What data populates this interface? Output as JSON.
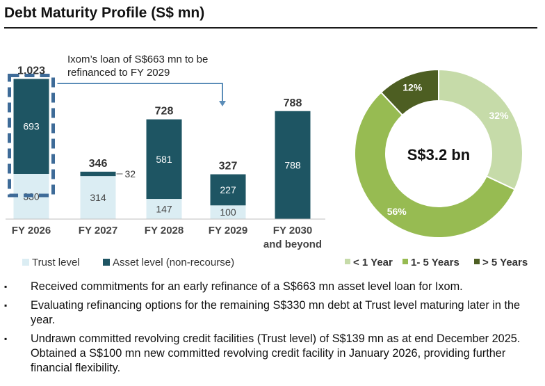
{
  "title": "Debt Maturity Profile (S$ mn)",
  "chart_data": [
    {
      "type": "bar",
      "stacked": true,
      "categories": [
        [
          "FY 2026"
        ],
        [
          "FY 2027"
        ],
        [
          "FY 2028"
        ],
        [
          "FY 2029"
        ],
        [
          "FY 2030",
          "and beyond"
        ]
      ],
      "series": [
        {
          "name": "Trust level",
          "color": "#dbedf3",
          "values": [
            330,
            314,
            147,
            100,
            0
          ]
        },
        {
          "name": "Asset level (non-recourse)",
          "color": "#1e5563",
          "values": [
            693,
            32,
            581,
            227,
            788
          ]
        }
      ],
      "totals": [
        1023,
        346,
        728,
        327,
        788
      ],
      "value_labels": {
        "trust": [
          "330",
          "314",
          "147",
          "100",
          ""
        ],
        "asset": [
          "693",
          "",
          "581",
          "227",
          "788"
        ],
        "asset_outside": [
          "",
          "32",
          "",
          "",
          ""
        ]
      },
      "total_labels": [
        "1,023",
        "346",
        "728",
        "327",
        "788"
      ],
      "annotation": {
        "lines": [
          "Ixom’s loan of S$663 mn to be",
          "refinanced to FY 2029"
        ],
        "from": "FY 2026",
        "to": "FY 2029",
        "color": "#5b8db8"
      },
      "legend": [
        "Trust level",
        "Asset level (non-recourse)"
      ],
      "legend_position": "bottom"
    },
    {
      "type": "pie",
      "donut": true,
      "center_label": "S$3.2 bn",
      "slices": [
        {
          "label": "< 1 Year",
          "value": 32,
          "text": "32%",
          "color": "#c6dba9"
        },
        {
          "label": "1- 5 Years",
          "value": 56,
          "text": "56%",
          "color": "#97bb52"
        },
        {
          "label": "> 5 Years",
          "value": 12,
          "text": "12%",
          "color": "#4d5e22"
        }
      ],
      "legend_position": "bottom"
    }
  ],
  "bullets": [
    "Received commitments for an early refinance of a S$663 mn asset level loan for Ixom.",
    "Evaluating refinancing options for the remaining S$330 mn debt at Trust level maturing later in the year.",
    "Undrawn committed revolving credit facilities (Trust level) of S$139 mn as at end December 2025. Obtained a S$100 mn new committed revolving credit facility in January 2026, providing further financial flexibility."
  ],
  "bullet_symbol": "▪"
}
